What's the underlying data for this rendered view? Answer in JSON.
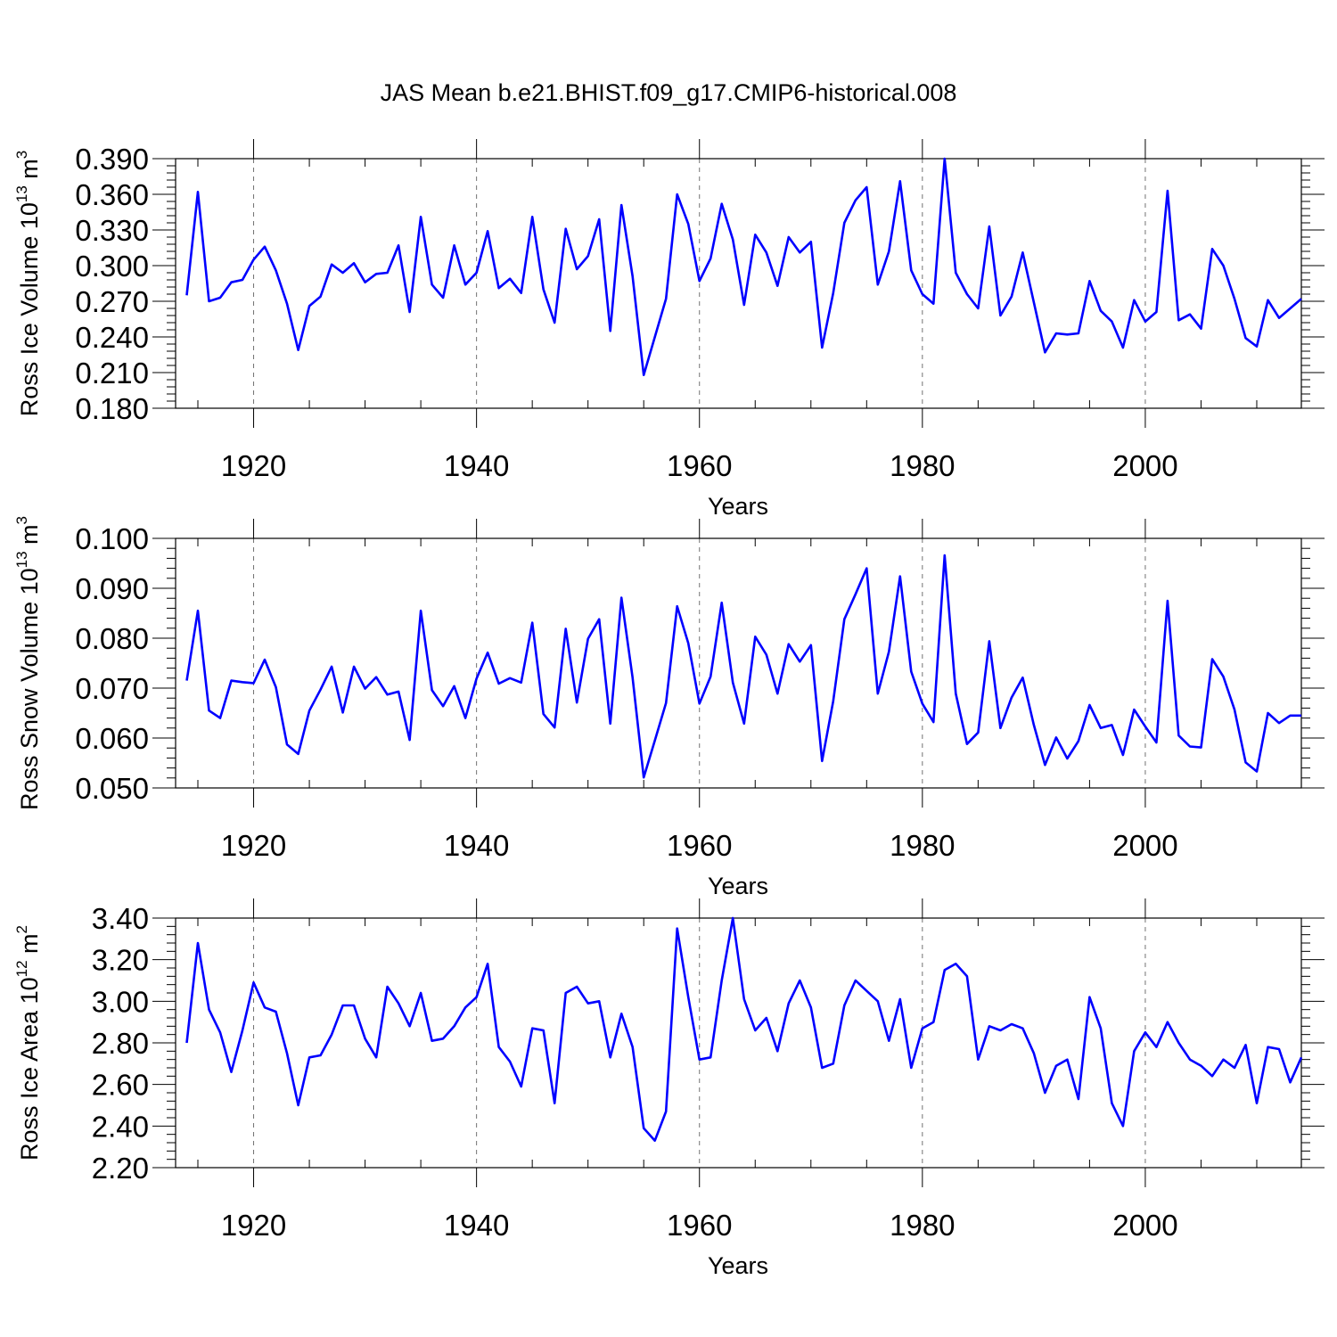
{
  "figure_title": "JAS Mean b.e21.BHIST.f09_g17.CMIP6-historical.008",
  "colors": {
    "series": "#0000ff",
    "axes": "#000000",
    "background": "#ffffff"
  },
  "chart_data": [
    {
      "type": "line",
      "ylabel": {
        "text": "Ross Ice Volume 10",
        "exp": "13",
        "unit": " m",
        "unit_exp": "3"
      },
      "xlabel": "Years",
      "xlim": [
        1913,
        2014
      ],
      "ylim": [
        0.18,
        0.39
      ],
      "x_ticks": [
        1920,
        1940,
        1960,
        1980,
        2000
      ],
      "x_tick_labels": [
        "1920",
        "1940",
        "1960",
        "1980",
        "2000"
      ],
      "y_ticks": [
        0.18,
        0.21,
        0.24,
        0.27,
        0.3,
        0.33,
        0.36,
        0.39
      ],
      "y_tick_labels": [
        "0.180",
        "0.210",
        "0.240",
        "0.270",
        "0.300",
        "0.330",
        "0.360",
        "0.390"
      ],
      "grid": "vertical dashed at major x ticks",
      "series": [
        {
          "name": "Ross Ice Volume",
          "x_start": 1914,
          "values": [
            0.275,
            0.362,
            0.27,
            0.273,
            0.286,
            0.288,
            0.305,
            0.316,
            0.296,
            0.268,
            0.229,
            0.266,
            0.274,
            0.301,
            0.294,
            0.302,
            0.286,
            0.293,
            0.294,
            0.317,
            0.261,
            0.341,
            0.284,
            0.273,
            0.317,
            0.284,
            0.294,
            0.329,
            0.281,
            0.289,
            0.277,
            0.341,
            0.28,
            0.252,
            0.331,
            0.297,
            0.308,
            0.339,
            0.245,
            0.351,
            0.291,
            0.208,
            0.24,
            0.272,
            0.36,
            0.335,
            0.287,
            0.306,
            0.352,
            0.322,
            0.267,
            0.326,
            0.311,
            0.283,
            0.324,
            0.311,
            0.32,
            0.231,
            0.277,
            0.336,
            0.355,
            0.366,
            0.284,
            0.312,
            0.371,
            0.296,
            0.276,
            0.268,
            0.39,
            0.294,
            0.276,
            0.264,
            0.333,
            0.258,
            0.274,
            0.311,
            0.269,
            0.227,
            0.243,
            0.242,
            0.243,
            0.287,
            0.262,
            0.253,
            0.231,
            0.271,
            0.253,
            0.261,
            0.363,
            0.254,
            0.259,
            0.247,
            0.314,
            0.3,
            0.272,
            0.239,
            0.232,
            0.271,
            0.256,
            0.264,
            0.272
          ]
        }
      ]
    },
    {
      "type": "line",
      "ylabel": {
        "text": "Ross Snow Volume 10",
        "exp": "13",
        "unit": " m",
        "unit_exp": "3"
      },
      "xlabel": "Years",
      "xlim": [
        1913,
        2014
      ],
      "ylim": [
        0.05,
        0.1
      ],
      "x_ticks": [
        1920,
        1940,
        1960,
        1980,
        2000
      ],
      "x_tick_labels": [
        "1920",
        "1940",
        "1960",
        "1980",
        "2000"
      ],
      "y_ticks": [
        0.05,
        0.06,
        0.07,
        0.08,
        0.09,
        0.1
      ],
      "y_tick_labels": [
        "0.050",
        "0.060",
        "0.070",
        "0.080",
        "0.090",
        "0.100"
      ],
      "grid": "vertical dashed at major x ticks",
      "series": [
        {
          "name": "Ross Snow Volume",
          "x_start": 1914,
          "values": [
            0.0715,
            0.0855,
            0.0655,
            0.064,
            0.0715,
            0.0712,
            0.071,
            0.0757,
            0.0702,
            0.0587,
            0.0568,
            0.0655,
            0.0697,
            0.0743,
            0.0651,
            0.0743,
            0.0699,
            0.0722,
            0.0687,
            0.0693,
            0.0596,
            0.0855,
            0.0696,
            0.0664,
            0.0704,
            0.064,
            0.0719,
            0.0771,
            0.0709,
            0.072,
            0.0711,
            0.0831,
            0.0648,
            0.0621,
            0.0819,
            0.0671,
            0.0799,
            0.0838,
            0.0629,
            0.0881,
            0.0721,
            0.0521,
            0.0595,
            0.067,
            0.0864,
            0.079,
            0.0669,
            0.0723,
            0.0871,
            0.0711,
            0.0629,
            0.0803,
            0.0767,
            0.0689,
            0.0788,
            0.0753,
            0.0786,
            0.0554,
            0.0674,
            0.0838,
            0.0888,
            0.094,
            0.0689,
            0.0773,
            0.0924,
            0.0733,
            0.0669,
            0.0632,
            0.0966,
            0.0689,
            0.0588,
            0.0611,
            0.0794,
            0.062,
            0.0681,
            0.0721,
            0.0626,
            0.0546,
            0.0601,
            0.0559,
            0.0594,
            0.0666,
            0.062,
            0.0626,
            0.0566,
            0.0657,
            0.0623,
            0.0591,
            0.0875,
            0.0605,
            0.0583,
            0.0581,
            0.0758,
            0.0723,
            0.0657,
            0.0551,
            0.0533,
            0.065,
            0.063,
            0.0645,
            0.0645
          ]
        }
      ]
    },
    {
      "type": "line",
      "ylabel": {
        "text": "Ross Ice Area 10",
        "exp": "12",
        "unit": " m",
        "unit_exp": "2"
      },
      "xlabel": "Years",
      "xlim": [
        1913,
        2014
      ],
      "ylim": [
        2.2,
        3.4
      ],
      "x_ticks": [
        1920,
        1940,
        1960,
        1980,
        2000
      ],
      "x_tick_labels": [
        "1920",
        "1940",
        "1960",
        "1980",
        "2000"
      ],
      "y_ticks": [
        2.2,
        2.4,
        2.6,
        2.8,
        3.0,
        3.2,
        3.4
      ],
      "y_tick_labels": [
        "2.20",
        "2.40",
        "2.60",
        "2.80",
        "3.00",
        "3.20",
        "3.40"
      ],
      "grid": "vertical dashed at major x ticks",
      "series": [
        {
          "name": "Ross Ice Area",
          "x_start": 1914,
          "values": [
            2.8,
            3.28,
            2.96,
            2.85,
            2.66,
            2.86,
            3.09,
            2.97,
            2.95,
            2.75,
            2.5,
            2.73,
            2.74,
            2.84,
            2.98,
            2.98,
            2.82,
            2.73,
            3.07,
            2.99,
            2.88,
            3.04,
            2.81,
            2.82,
            2.88,
            2.97,
            3.02,
            3.18,
            2.78,
            2.71,
            2.59,
            2.87,
            2.86,
            2.51,
            3.04,
            3.07,
            2.99,
            3.0,
            2.73,
            2.94,
            2.78,
            2.39,
            2.33,
            2.47,
            3.35,
            3.02,
            2.72,
            2.73,
            3.1,
            3.4,
            3.01,
            2.86,
            2.92,
            2.76,
            2.99,
            3.1,
            2.97,
            2.68,
            2.7,
            2.98,
            3.1,
            3.05,
            3.0,
            2.81,
            3.01,
            2.68,
            2.87,
            2.9,
            3.15,
            3.18,
            3.12,
            2.72,
            2.88,
            2.86,
            2.89,
            2.87,
            2.75,
            2.56,
            2.69,
            2.72,
            2.53,
            3.02,
            2.87,
            2.51,
            2.4,
            2.76,
            2.85,
            2.78,
            2.9,
            2.8,
            2.72,
            2.69,
            2.64,
            2.72,
            2.68,
            2.79,
            2.51,
            2.78,
            2.77,
            2.61,
            2.73
          ]
        }
      ]
    }
  ]
}
